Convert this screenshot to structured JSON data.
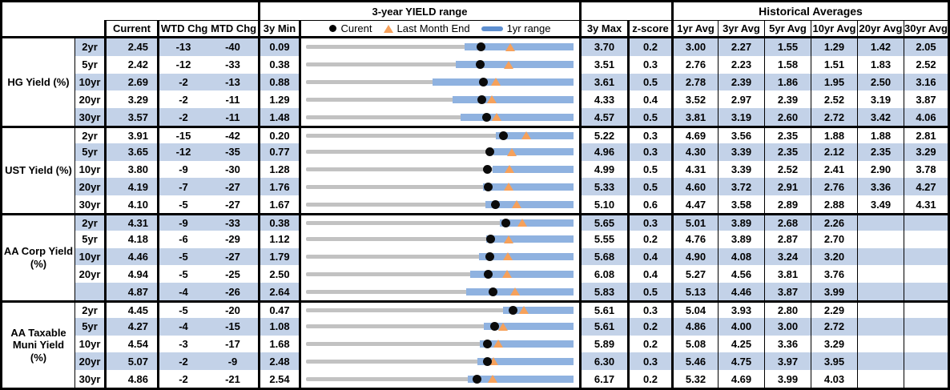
{
  "header": {
    "chart_group_title": "3-year YIELD range",
    "hist_group_title": "Historical Averages",
    "columns": {
      "current": "Current",
      "wtd": "WTD Chg",
      "mtd": "MTD Chg",
      "min3y": "3y Min",
      "max3y": "3y Max",
      "zscore": "z-score",
      "avgs": [
        "1yr Avg",
        "3yr Avg",
        "5yr Avg",
        "10yr Avg",
        "20yr Avg",
        "30yr Avg"
      ]
    },
    "legend": {
      "current": "Curent",
      "last_month_end": "Last Month End",
      "range_1yr": "1yr range"
    }
  },
  "colors": {
    "row_shade": "#c3d2e8",
    "bar_1yr_range": "#8fb2e0",
    "bar_3yr_track": "#c2c2c2",
    "marker_last_month": "#f6a15b",
    "marker_current": "#0b0b0b",
    "legend_dash": "#5e8fd0",
    "border": "#000000"
  },
  "chart_data": {
    "type": "scatter",
    "description": "Dot-plot range chart per row: gray bar = 3y min..max, blue bar = 1yr range, black dot = current yield, orange triangle = last month end (1yr range and last-month values estimated from marker positions)",
    "sections": [
      {
        "label": "HG Yield (%)",
        "rows": [
          {
            "tenor": "2yr",
            "current": "2.45",
            "wtd_chg": "-13",
            "mtd_chg": "-40",
            "min_3y": "0.09",
            "max_3y": "3.70",
            "z_score": "0.2",
            "averages": [
              "3.00",
              "2.27",
              "1.55",
              "1.29",
              "1.42",
              "2.05"
            ],
            "last_month_end": 2.85,
            "range_1yr": [
              2.23,
              3.7
            ]
          },
          {
            "tenor": "5yr",
            "current": "2.42",
            "wtd_chg": "-12",
            "mtd_chg": "-33",
            "min_3y": "0.38",
            "max_3y": "3.51",
            "z_score": "0.3",
            "averages": [
              "2.76",
              "2.23",
              "1.58",
              "1.51",
              "1.83",
              "2.52"
            ],
            "last_month_end": 2.75,
            "range_1yr": [
              2.13,
              3.51
            ]
          },
          {
            "tenor": "10yr",
            "current": "2.69",
            "wtd_chg": "-2",
            "mtd_chg": "-13",
            "min_3y": "0.88",
            "max_3y": "3.61",
            "z_score": "0.5",
            "averages": [
              "2.78",
              "2.39",
              "1.86",
              "1.95",
              "2.50",
              "3.16"
            ],
            "last_month_end": 2.82,
            "range_1yr": [
              2.17,
              3.61
            ]
          },
          {
            "tenor": "20yr",
            "current": "3.29",
            "wtd_chg": "-2",
            "mtd_chg": "-11",
            "min_3y": "1.29",
            "max_3y": "4.33",
            "z_score": "0.4",
            "averages": [
              "3.52",
              "2.97",
              "2.39",
              "2.52",
              "3.19",
              "3.87"
            ],
            "last_month_end": 3.4,
            "range_1yr": [
              2.96,
              4.33
            ]
          },
          {
            "tenor": "30yr",
            "current": "3.57",
            "wtd_chg": "-2",
            "mtd_chg": "-11",
            "min_3y": "1.48",
            "max_3y": "4.57",
            "z_score": "0.5",
            "averages": [
              "3.81",
              "3.19",
              "2.60",
              "2.72",
              "3.42",
              "4.06"
            ],
            "last_month_end": 3.68,
            "range_1yr": [
              3.27,
              4.57
            ]
          }
        ]
      },
      {
        "label": "UST Yield (%)",
        "rows": [
          {
            "tenor": "2yr",
            "current": "3.91",
            "wtd_chg": "-15",
            "mtd_chg": "-42",
            "min_3y": "0.20",
            "max_3y": "5.22",
            "z_score": "0.3",
            "averages": [
              "4.69",
              "3.56",
              "2.35",
              "1.88",
              "1.88",
              "2.81"
            ],
            "last_month_end": 4.33,
            "range_1yr": [
              3.76,
              5.22
            ]
          },
          {
            "tenor": "5yr",
            "current": "3.65",
            "wtd_chg": "-12",
            "mtd_chg": "-35",
            "min_3y": "0.77",
            "max_3y": "4.96",
            "z_score": "0.3",
            "averages": [
              "4.30",
              "3.39",
              "2.35",
              "2.12",
              "2.35",
              "3.29"
            ],
            "last_month_end": 4.0,
            "range_1yr": [
              3.7,
              4.96
            ]
          },
          {
            "tenor": "10yr",
            "current": "3.80",
            "wtd_chg": "-9",
            "mtd_chg": "-30",
            "min_3y": "1.28",
            "max_3y": "4.99",
            "z_score": "0.5",
            "averages": [
              "4.31",
              "3.39",
              "2.52",
              "2.41",
              "2.90",
              "3.78"
            ],
            "last_month_end": 4.1,
            "range_1yr": [
              3.87,
              4.99
            ]
          },
          {
            "tenor": "20yr",
            "current": "4.19",
            "wtd_chg": "-7",
            "mtd_chg": "-27",
            "min_3y": "1.76",
            "max_3y": "5.33",
            "z_score": "0.5",
            "averages": [
              "4.60",
              "3.72",
              "2.91",
              "2.76",
              "3.36",
              "4.27"
            ],
            "last_month_end": 4.46,
            "range_1yr": [
              4.12,
              5.33
            ]
          },
          {
            "tenor": "30yr",
            "current": "4.10",
            "wtd_chg": "-5",
            "mtd_chg": "-27",
            "min_3y": "1.67",
            "max_3y": "5.10",
            "z_score": "0.6",
            "averages": [
              "4.47",
              "3.58",
              "2.89",
              "2.88",
              "3.49",
              "4.31"
            ],
            "last_month_end": 4.37,
            "range_1yr": [
              3.97,
              5.1
            ]
          }
        ]
      },
      {
        "label": "AA Corp Yield\n(%)",
        "rows": [
          {
            "tenor": "2yr",
            "current": "4.31",
            "wtd_chg": "-9",
            "mtd_chg": "-33",
            "min_3y": "0.38",
            "max_3y": "5.65",
            "z_score": "0.3",
            "averages": [
              "5.01",
              "3.89",
              "2.68",
              "2.26",
              "",
              ""
            ],
            "last_month_end": 4.64,
            "range_1yr": [
              4.2,
              5.65
            ]
          },
          {
            "tenor": "5yr",
            "current": "4.18",
            "wtd_chg": "-6",
            "mtd_chg": "-29",
            "min_3y": "1.12",
            "max_3y": "5.55",
            "z_score": "0.2",
            "averages": [
              "4.76",
              "3.89",
              "2.87",
              "2.70",
              "",
              ""
            ],
            "last_month_end": 4.47,
            "range_1yr": [
              4.1,
              5.55
            ]
          },
          {
            "tenor": "10yr",
            "current": "4.46",
            "wtd_chg": "-5",
            "mtd_chg": "-27",
            "min_3y": "1.79",
            "max_3y": "5.68",
            "z_score": "0.4",
            "averages": [
              "4.90",
              "4.08",
              "3.24",
              "3.20",
              "",
              ""
            ],
            "last_month_end": 4.73,
            "range_1yr": [
              4.31,
              5.68
            ]
          },
          {
            "tenor": "20yr",
            "current": "4.94",
            "wtd_chg": "-5",
            "mtd_chg": "-25",
            "min_3y": "2.50",
            "max_3y": "6.08",
            "z_score": "0.4",
            "averages": [
              "5.27",
              "4.56",
              "3.81",
              "3.76",
              "",
              ""
            ],
            "last_month_end": 5.19,
            "range_1yr": [
              4.7,
              6.08
            ]
          },
          {
            "tenor": "",
            "current": "4.87",
            "wtd_chg": "-4",
            "mtd_chg": "-26",
            "min_3y": "2.64",
            "max_3y": "5.83",
            "z_score": "0.5",
            "averages": [
              "5.13",
              "4.46",
              "3.87",
              "3.99",
              "",
              ""
            ],
            "last_month_end": 5.13,
            "range_1yr": [
              4.55,
              5.83
            ]
          }
        ]
      },
      {
        "label": "AA Taxable\nMuni Yield\n(%)",
        "rows": [
          {
            "tenor": "2yr",
            "current": "4.45",
            "wtd_chg": "-5",
            "mtd_chg": "-20",
            "min_3y": "0.47",
            "max_3y": "5.61",
            "z_score": "0.3",
            "averages": [
              "5.04",
              "3.93",
              "2.80",
              "2.29",
              "",
              ""
            ],
            "last_month_end": 4.65,
            "range_1yr": [
              4.25,
              5.61
            ]
          },
          {
            "tenor": "5yr",
            "current": "4.27",
            "wtd_chg": "-4",
            "mtd_chg": "-15",
            "min_3y": "1.08",
            "max_3y": "5.61",
            "z_score": "0.2",
            "averages": [
              "4.86",
              "4.00",
              "3.00",
              "2.72",
              "",
              ""
            ],
            "last_month_end": 4.42,
            "range_1yr": [
              4.09,
              5.61
            ]
          },
          {
            "tenor": "10yr",
            "current": "4.54",
            "wtd_chg": "-3",
            "mtd_chg": "-17",
            "min_3y": "1.68",
            "max_3y": "5.89",
            "z_score": "0.2",
            "averages": [
              "5.08",
              "4.25",
              "3.36",
              "3.29",
              "",
              ""
            ],
            "last_month_end": 4.71,
            "range_1yr": [
              4.42,
              5.89
            ]
          },
          {
            "tenor": "20yr",
            "current": "5.07",
            "wtd_chg": "-2",
            "mtd_chg": "-9",
            "min_3y": "2.48",
            "max_3y": "6.30",
            "z_score": "0.3",
            "averages": [
              "5.46",
              "4.75",
              "3.97",
              "3.95",
              "",
              ""
            ],
            "last_month_end": 5.16,
            "range_1yr": [
              4.93,
              6.3
            ]
          },
          {
            "tenor": "30yr",
            "current": "4.86",
            "wtd_chg": "-2",
            "mtd_chg": "-21",
            "min_3y": "2.54",
            "max_3y": "6.17",
            "z_score": "0.2",
            "averages": [
              "5.32",
              "4.69",
              "3.99",
              "4.03",
              "",
              ""
            ],
            "last_month_end": 5.07,
            "range_1yr": [
              4.74,
              6.17
            ]
          }
        ]
      }
    ]
  }
}
